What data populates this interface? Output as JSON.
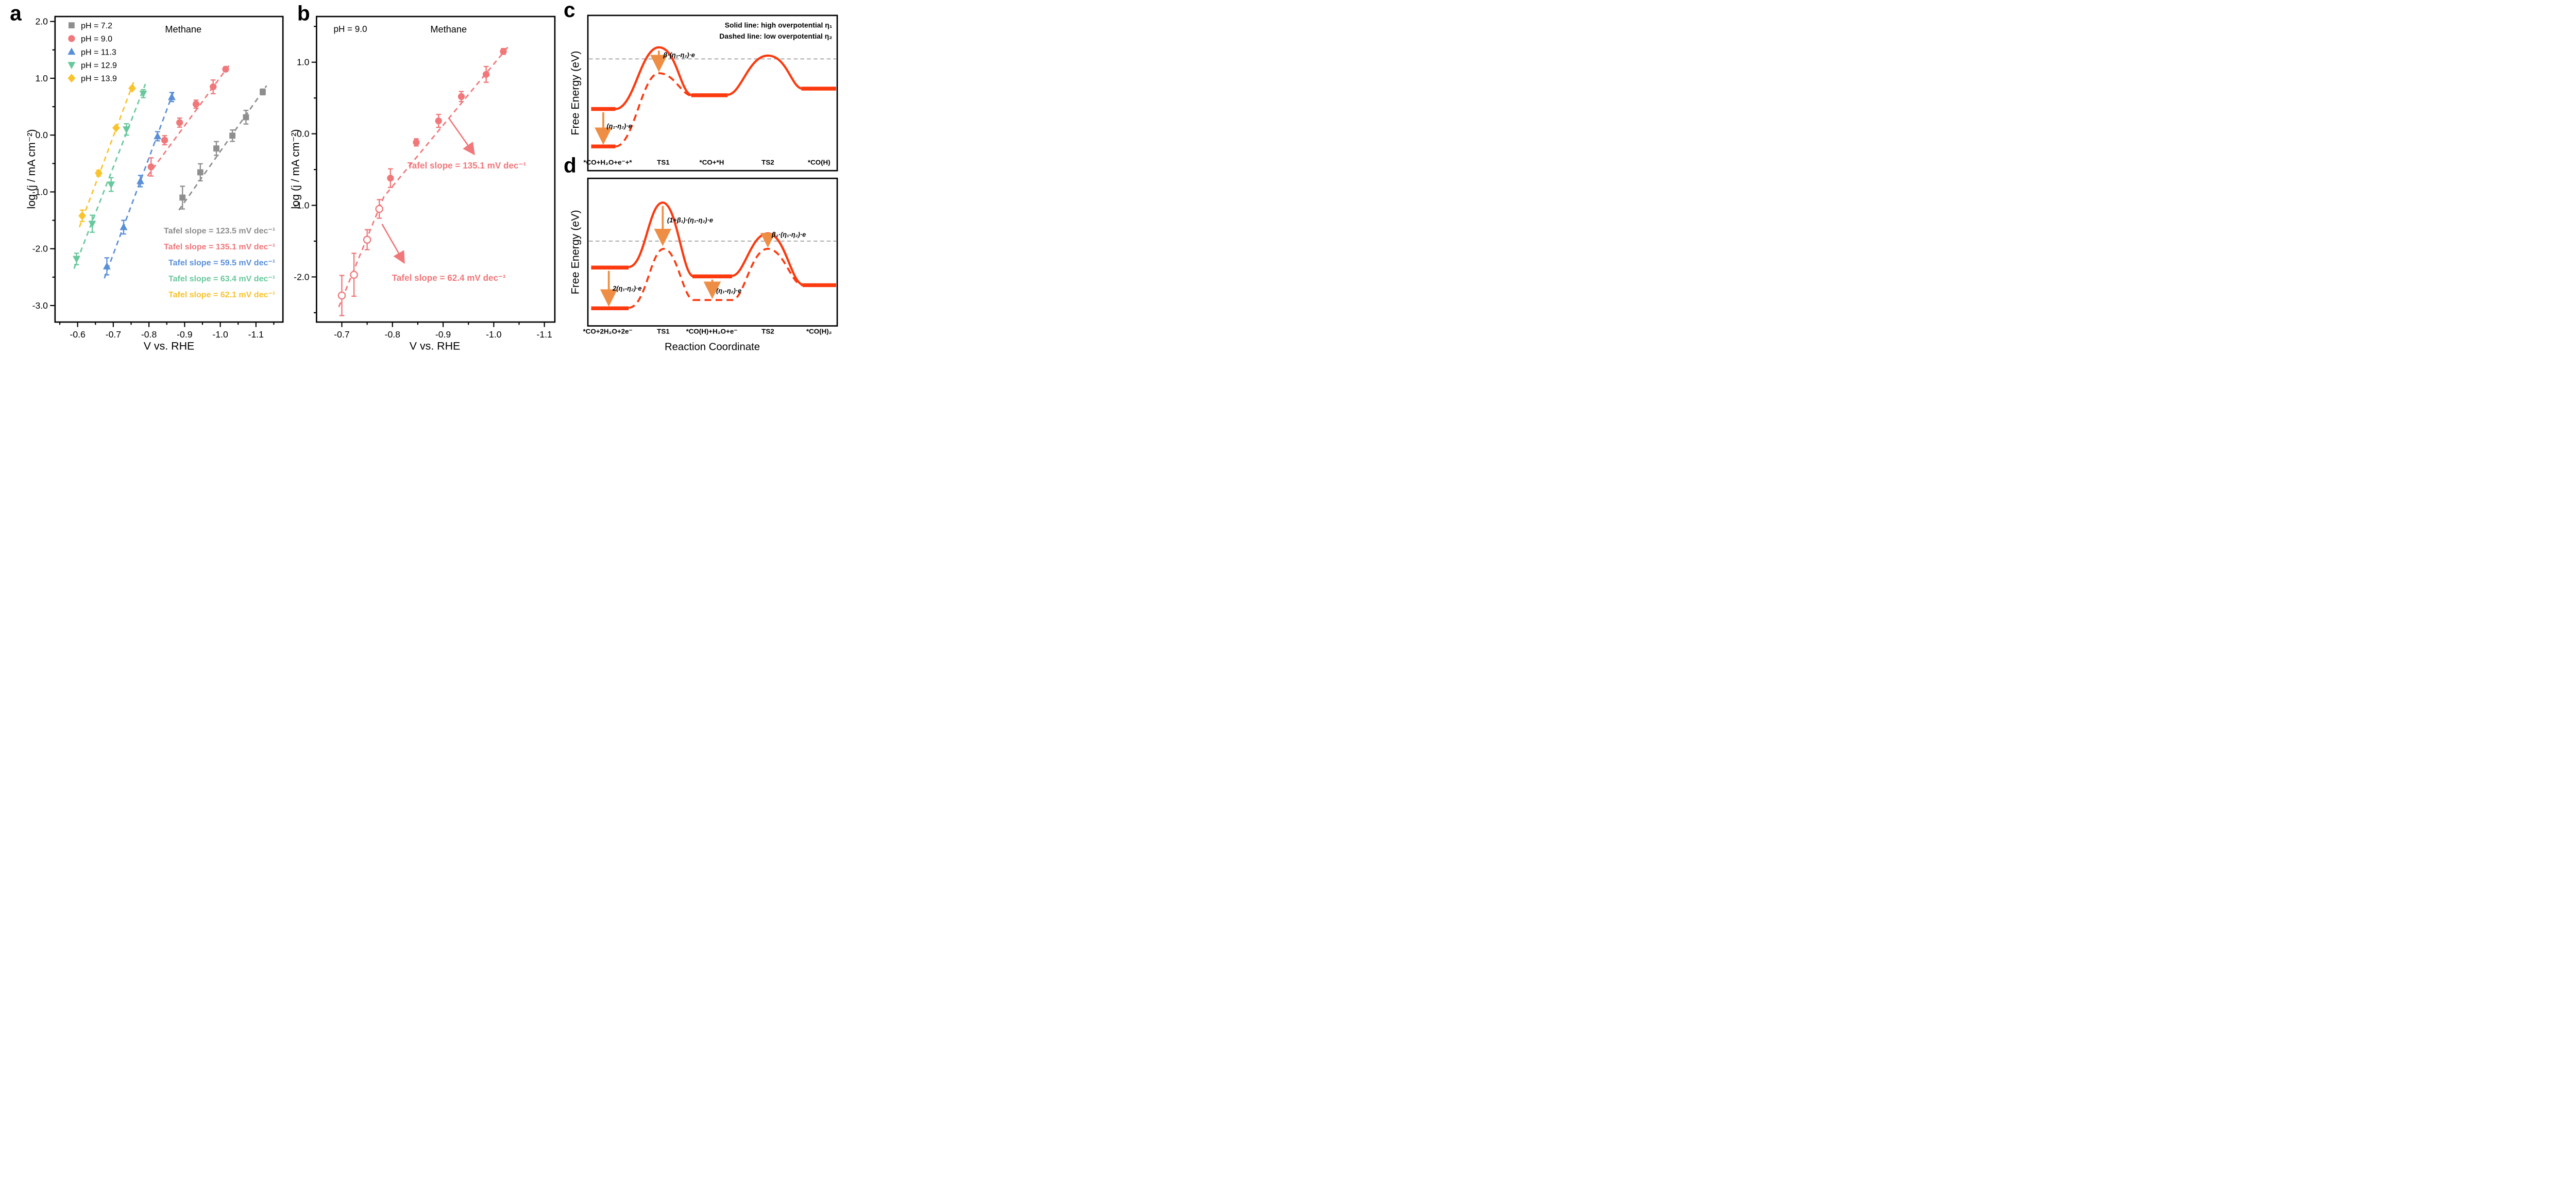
{
  "panel_letters": {
    "a": "a",
    "b": "b",
    "c": "c",
    "d": "d"
  },
  "chart_data": [
    {
      "id": "a",
      "type": "scatter",
      "title": "Methane",
      "xlabel": "V vs. RHE",
      "ylabel": "log (j / mA cm⁻²)",
      "x_axis_note": "voltage axis reversed, -0.6 V at left to -1.1 V at right",
      "x_ticks": [
        "-0.6",
        "-0.7",
        "-0.8",
        "-0.9",
        "-1.0",
        "-1.1"
      ],
      "x_tick_values": [
        -0.6,
        -0.7,
        -0.8,
        -0.9,
        -1.0,
        -1.1
      ],
      "x_minor_ticks": [
        -0.55,
        -0.65,
        -0.75,
        -0.85,
        -0.95,
        -1.05,
        -1.15
      ],
      "y_ticks": [
        "2.0",
        "1.0",
        "0.0",
        "-1.0",
        "-2.0",
        "-3.0"
      ],
      "y_tick_values": [
        2.0,
        1.0,
        0.0,
        -1.0,
        -2.0,
        -3.0
      ],
      "y_minor_ticks": [
        1.5,
        0.5,
        -0.5,
        -1.5,
        -2.5
      ],
      "legend": [
        {
          "label": "pH = 7.2",
          "color": "#8e8e8e",
          "marker": "square"
        },
        {
          "label": "pH = 9.0",
          "color": "#f0777a",
          "marker": "circle"
        },
        {
          "label": "pH = 11.3",
          "color": "#5a8fd8",
          "marker": "triangle-up"
        },
        {
          "label": "pH = 12.9",
          "color": "#68c89c",
          "marker": "triangle-down"
        },
        {
          "label": "pH = 13.9",
          "color": "#f9c32c",
          "marker": "diamond"
        }
      ],
      "series": [
        {
          "name": "pH = 7.2",
          "marker": "square",
          "color": "#8e8e8e",
          "tafel_label": "Tafel slope = 123.5 mV dec⁻¹",
          "points": [
            [
              -0.894,
              -1.1,
              0.2
            ],
            [
              -0.944,
              -0.655,
              0.15
            ],
            [
              -0.989,
              -0.235,
              0.12
            ],
            [
              -1.034,
              -0.01,
              0.1
            ],
            [
              -1.072,
              0.315,
              0.12
            ],
            [
              -1.119,
              0.76,
              0.05
            ]
          ],
          "fit": [
            [
              -0.884,
              -1.32
            ],
            [
              -1.13,
              0.87
            ]
          ]
        },
        {
          "name": "pH = 9.0",
          "marker": "circle",
          "color": "#f0777a",
          "tafel_label": "Tafel slope = 135.1 mV dec⁻¹",
          "points": [
            [
              -0.806,
              -0.56,
              0.16
            ],
            [
              -0.844,
              -0.09,
              0.08
            ],
            [
              -0.886,
              0.22,
              0.08
            ],
            [
              -0.932,
              0.545,
              0.07
            ],
            [
              -0.98,
              0.85,
              0.12
            ],
            [
              -1.015,
              1.16,
              0.04
            ]
          ],
          "fit": [
            [
              -0.796,
              -0.72
            ],
            [
              -1.025,
              1.23
            ]
          ]
        },
        {
          "name": "pH = 11.3",
          "marker": "triangle-up",
          "color": "#5a8fd8",
          "tafel_label": "Tafel slope = 59.5 mV dec⁻¹",
          "points": [
            [
              -0.682,
              -2.31,
              0.15
            ],
            [
              -0.729,
              -1.62,
              0.12
            ],
            [
              -0.776,
              -0.81,
              0.1
            ],
            [
              -0.824,
              -0.02,
              0.08
            ],
            [
              -0.864,
              0.67,
              0.08
            ]
          ],
          "fit": [
            [
              -0.675,
              -2.52
            ],
            [
              -0.872,
              0.82
            ]
          ]
        },
        {
          "name": "pH = 12.9",
          "marker": "triangle-down",
          "color": "#68c89c",
          "tafel_label": "Tafel slope = 63.4 mV dec⁻¹",
          "points": [
            [
              -0.597,
              -2.18,
              0.1
            ],
            [
              -0.641,
              -1.56,
              0.15
            ],
            [
              -0.694,
              -0.87,
              0.12
            ],
            [
              -0.737,
              0.1,
              0.1
            ],
            [
              -0.784,
              0.73,
              0.07
            ]
          ],
          "fit": [
            [
              -0.59,
              -2.35
            ],
            [
              -0.79,
              0.9
            ]
          ]
        },
        {
          "name": "pH = 13.9",
          "marker": "diamond",
          "color": "#f9c32c",
          "tafel_label": "Tafel slope = 62.1 mV dec⁻¹",
          "points": [
            [
              -0.613,
              -1.42,
              0.1
            ],
            [
              -0.659,
              -0.67,
              0.05
            ],
            [
              -0.708,
              0.127,
              0
            ],
            [
              -0.753,
              0.825,
              0
            ]
          ],
          "fit": [
            [
              -0.605,
              -1.62
            ],
            [
              -0.758,
              0.95
            ]
          ]
        }
      ]
    },
    {
      "id": "b",
      "type": "scatter",
      "inset_label": "pH = 9.0",
      "title": "Methane",
      "xlabel": "V vs. RHE",
      "ylabel": "log (j / mA cm⁻²)",
      "x_ticks": [
        "-0.7",
        "-0.8",
        "-0.9",
        "-1.0",
        "-1.1"
      ],
      "x_tick_values": [
        -0.7,
        -0.8,
        -0.9,
        -1.0,
        -1.1
      ],
      "x_minor_ticks": [
        -0.75,
        -0.85,
        -0.95,
        -1.05
      ],
      "y_ticks": [
        "1.0",
        "0.0",
        "-1.0",
        "-2.0"
      ],
      "y_tick_values": [
        1.0,
        0.0,
        -1.0,
        -2.0
      ],
      "y_minor_ticks": [
        1.5,
        0.5,
        -0.5,
        -1.5,
        -2.5
      ],
      "annotations": [
        {
          "text": "Tafel slope = 135.1 mV dec⁻¹"
        },
        {
          "text": "Tafel slope = 62.4 mV dec⁻¹"
        }
      ],
      "series": [
        {
          "name": "pH 9.0 low-current branch (open symbols)",
          "marker": "circle-open",
          "color": "#f0777a",
          "points": [
            [
              -0.7,
              -2.26,
              0.28
            ],
            [
              -0.724,
              -1.97,
              0.3
            ],
            [
              -0.75,
              -1.48,
              0.14
            ],
            [
              -0.774,
              -1.05,
              0.13
            ]
          ],
          "fit": [
            [
              -0.694,
              -2.42
            ],
            [
              -0.783,
              -0.88
            ],
            [
              -1.03,
              1.23
            ]
          ]
        },
        {
          "name": "pH 9.0 high-current branch (filled symbols)",
          "marker": "circle",
          "color": "#f0777a",
          "points": [
            [
              -0.796,
              -0.62,
              0.13
            ],
            [
              -0.847,
              -0.12,
              0.05
            ],
            [
              -0.891,
              0.18,
              0.09
            ],
            [
              -0.936,
              0.52,
              0.07
            ],
            [
              -0.985,
              0.83,
              0.11
            ],
            [
              -1.019,
              1.15,
              0.04
            ]
          ]
        }
      ]
    }
  ],
  "diagrams": {
    "c": {
      "ylabel": "Free Energy (eV)",
      "legend_line1": "Solid line: high overpotential η₁",
      "legend_line2": "Dashed line: low overpotential η₂",
      "stages": [
        "*CO+H₂O+e⁻+*",
        "TS1",
        "*CO+*H",
        "TS2",
        "*CO(H)"
      ],
      "annotations": [
        "(η₁-η₂)·e",
        "β·(η₁-η₂)·e"
      ],
      "curve_color": "#fb3a0f",
      "arrow_color": "#ee8e44",
      "reference_line_color": "#b0b0b0"
    },
    "d": {
      "ylabel": "Free Energy (eV)",
      "xlabel": "Reaction Coordinate",
      "stages": [
        "*CO+2H₂O+2e⁻",
        "TS1",
        "*CO(H)+H₂O+e⁻",
        "TS2",
        "*CO(H)₂"
      ],
      "annotations": [
        "2(η₁-η₂)·e",
        "(1+β₁)·(η₁-η₂)·e",
        "(η₁-η₂)·e",
        "β₂·(η₁-η₂)·e"
      ],
      "curve_color": "#fb3a0f",
      "arrow_color": "#ee8e44",
      "reference_line_color": "#b0b0b0"
    }
  }
}
